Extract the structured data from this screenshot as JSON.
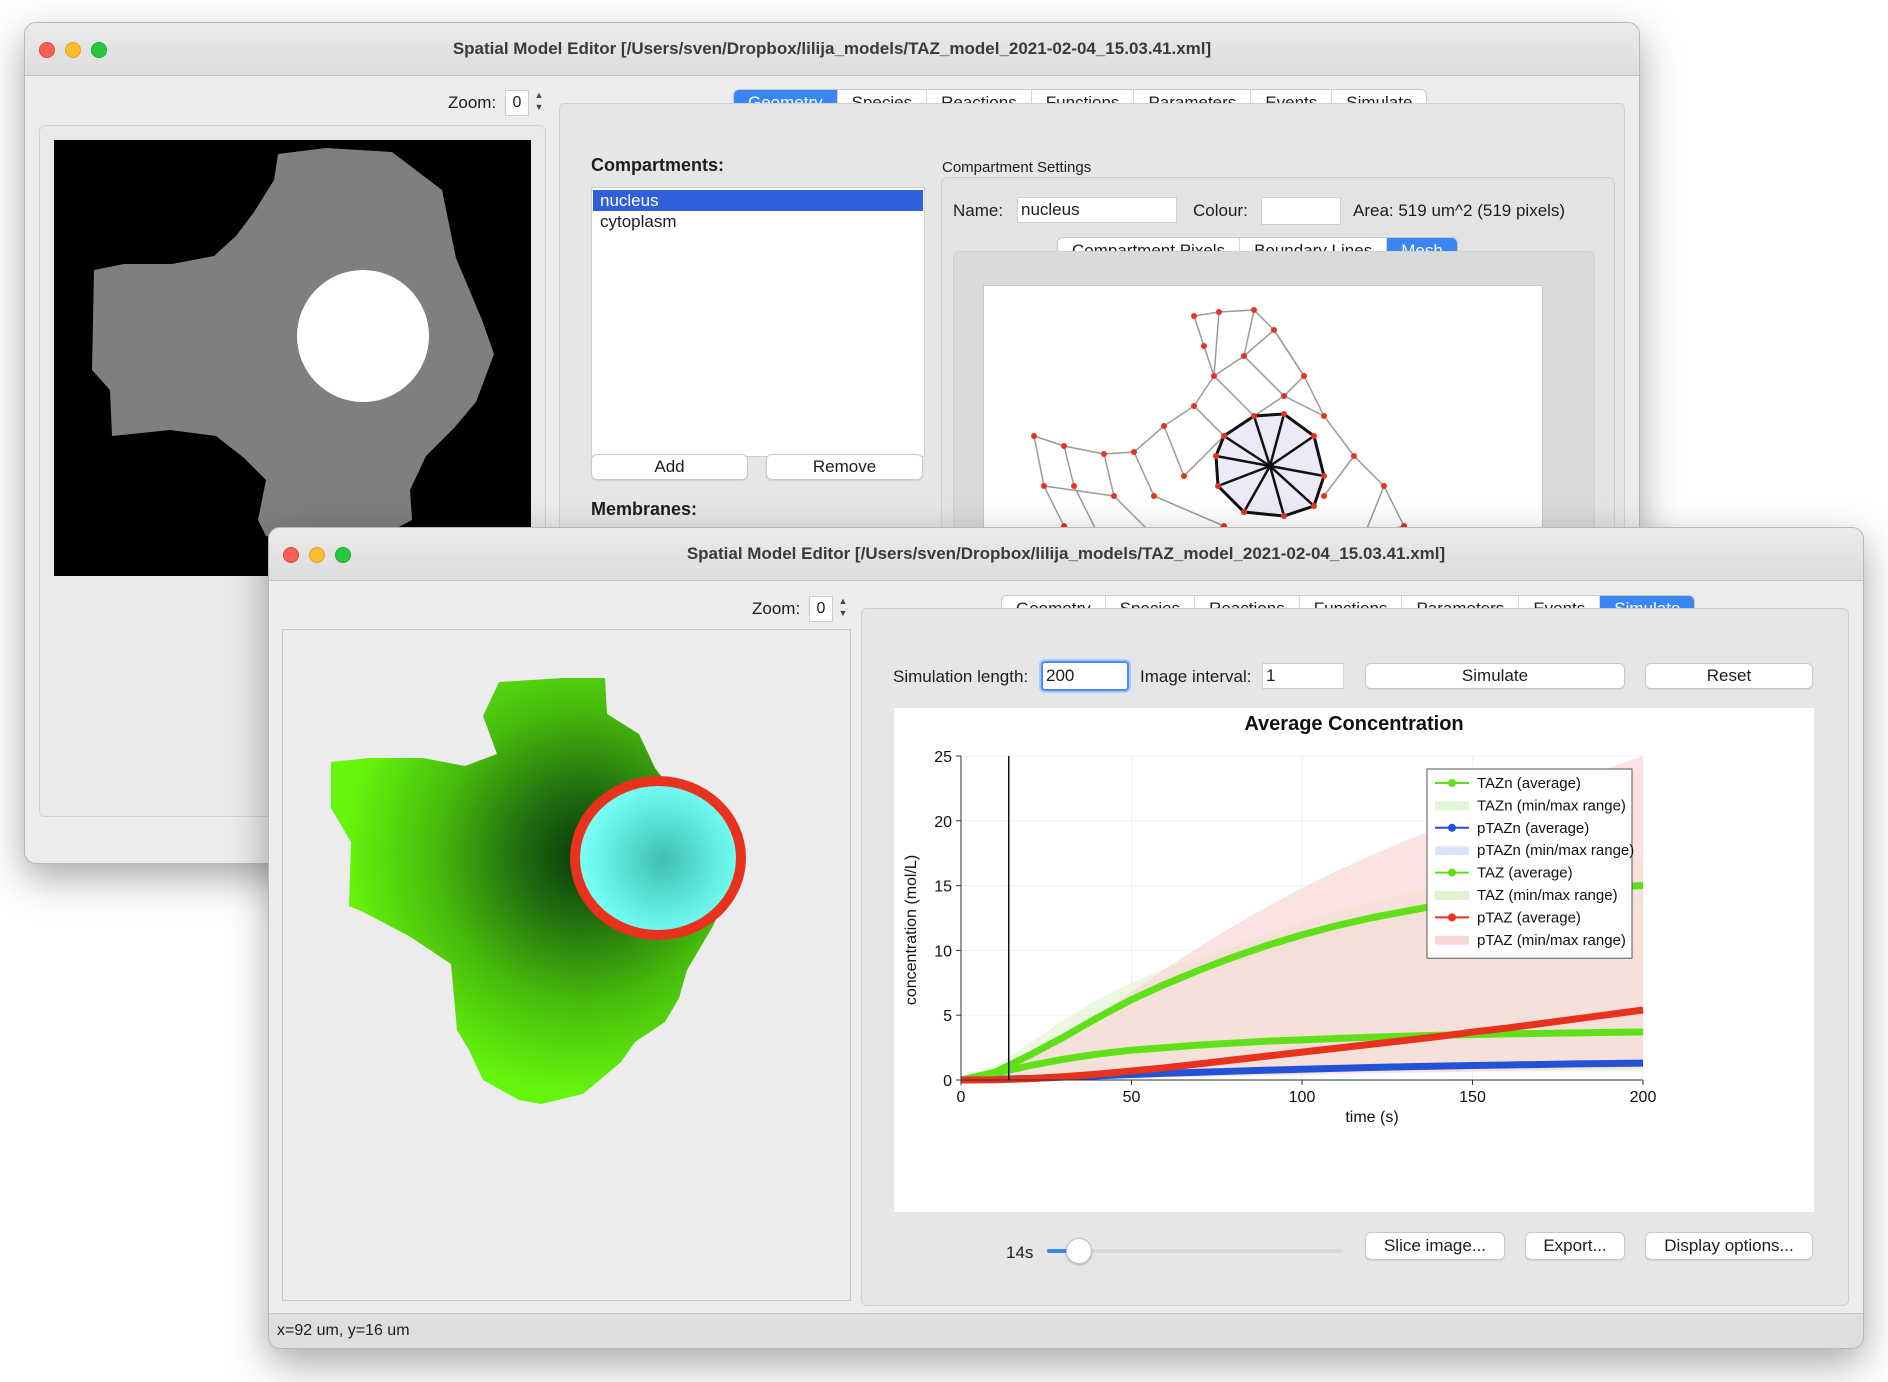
{
  "back_window": {
    "title": "Spatial Model Editor [/Users/sven/Dropbox/lilija_models/TAZ_model_2021-02-04_15.03.41.xml]",
    "zoom_label": "Zoom:",
    "zoom_value": "0",
    "tabs": [
      "Geometry",
      "Species",
      "Reactions",
      "Functions",
      "Parameters",
      "Events",
      "Simulate"
    ],
    "active_tab": "Geometry",
    "compartments_label": "Compartments:",
    "compartments": [
      "nucleus",
      "cytoplasm"
    ],
    "selected_compartment": "nucleus",
    "add_button": "Add",
    "remove_button": "Remove",
    "membranes_label": "Membranes:",
    "settings_title": "Compartment Settings",
    "name_label": "Name:",
    "name_value": "nucleus",
    "colour_label": "Colour:",
    "area_text": "Area: 519 um^2 (519 pixels)",
    "subtabs": [
      "Compartment Pixels",
      "Boundary Lines",
      "Mesh"
    ],
    "active_subtab": "Mesh"
  },
  "front_window": {
    "title": "Spatial Model Editor [/Users/sven/Dropbox/lilija_models/TAZ_model_2021-02-04_15.03.41.xml]",
    "zoom_label": "Zoom:",
    "zoom_value": "0",
    "tabs": [
      "Geometry",
      "Species",
      "Reactions",
      "Functions",
      "Parameters",
      "Events",
      "Simulate"
    ],
    "active_tab": "Simulate",
    "sim_length_label": "Simulation length:",
    "sim_length_value": "200",
    "image_interval_label": "Image interval:",
    "image_interval_value": "1",
    "simulate_button": "Simulate",
    "reset_button": "Reset",
    "time_label": "14s",
    "time_slider_value": 14,
    "slice_button": "Slice image...",
    "export_button": "Export...",
    "display_button": "Display options...",
    "status": "x=92 um, y=16 um"
  },
  "chart_data": {
    "type": "line",
    "title": "Average Concentration",
    "xlabel": "time (s)",
    "ylabel": "concentration (mol/L)",
    "xlim": [
      0,
      200
    ],
    "ylim": [
      0,
      25
    ],
    "xticks": [
      0,
      50,
      100,
      150,
      200
    ],
    "yticks": [
      0,
      5,
      10,
      15,
      20,
      25
    ],
    "current_time": 14,
    "legend_position": "top-right",
    "x": [
      0,
      10,
      20,
      30,
      40,
      50,
      60,
      70,
      80,
      90,
      100,
      110,
      120,
      130,
      140,
      150,
      160,
      170,
      180,
      190,
      200
    ],
    "series": [
      {
        "name": "TAZn (average)",
        "color": "#5fe018",
        "values": [
          0,
          0.6,
          1.9,
          3.3,
          4.8,
          6.2,
          7.4,
          8.5,
          9.5,
          10.4,
          11.2,
          11.9,
          12.5,
          13.0,
          13.5,
          13.9,
          14.2,
          14.5,
          14.7,
          14.9,
          15.0
        ]
      },
      {
        "name": "TAZn (min/max range)",
        "color": "#dff7d2",
        "band": true,
        "low": [
          0,
          0.6,
          1.8,
          3.2,
          4.6,
          5.9,
          7.0,
          8.0,
          8.9,
          9.7,
          10.4,
          11.0,
          11.5,
          12.0,
          12.4,
          12.7,
          13.0,
          13.2,
          13.4,
          13.5,
          13.6
        ],
        "high": [
          0,
          0.7,
          2.1,
          3.6,
          5.2,
          6.7,
          8.0,
          9.2,
          10.3,
          11.3,
          12.2,
          13.0,
          13.7,
          14.3,
          14.9,
          15.4,
          15.8,
          16.2,
          16.5,
          16.8,
          17.0
        ]
      },
      {
        "name": "pTAZn (average)",
        "color": "#2352d8",
        "values": [
          0,
          0.05,
          0.12,
          0.22,
          0.32,
          0.42,
          0.52,
          0.6,
          0.68,
          0.76,
          0.83,
          0.9,
          0.96,
          1.02,
          1.07,
          1.12,
          1.16,
          1.2,
          1.24,
          1.27,
          1.3
        ]
      },
      {
        "name": "pTAZn (min/max range)",
        "color": "#dbe4fa",
        "band": true,
        "low": [
          0,
          0.04,
          0.1,
          0.19,
          0.28,
          0.37,
          0.46,
          0.53,
          0.6,
          0.67,
          0.73,
          0.79,
          0.84,
          0.89,
          0.94,
          0.98,
          1.02,
          1.05,
          1.08,
          1.11,
          1.14
        ],
        "high": [
          0,
          0.06,
          0.14,
          0.25,
          0.36,
          0.47,
          0.58,
          0.67,
          0.76,
          0.85,
          0.93,
          1.01,
          1.08,
          1.15,
          1.2,
          1.26,
          1.31,
          1.35,
          1.4,
          1.43,
          1.46
        ]
      },
      {
        "name": "TAZ (average)",
        "color": "#5fe018",
        "values": [
          0,
          0.5,
          1.1,
          1.6,
          2.0,
          2.3,
          2.5,
          2.7,
          2.85,
          3.0,
          3.1,
          3.2,
          3.3,
          3.38,
          3.45,
          3.5,
          3.56,
          3.6,
          3.64,
          3.67,
          3.7
        ]
      },
      {
        "name": "TAZ (min/max range)",
        "color": "#e2f3d4",
        "band": true,
        "low": [
          0,
          0.1,
          0.3,
          0.45,
          0.55,
          0.6,
          0.62,
          0.64,
          0.65,
          0.66,
          0.66,
          0.67,
          0.67,
          0.67,
          0.67,
          0.67,
          0.67,
          0.67,
          0.67,
          0.67,
          0.67
        ],
        "high": [
          0,
          1.1,
          2.8,
          4.6,
          6.2,
          7.5,
          8.6,
          9.5,
          10.3,
          11.0,
          11.6,
          12.1,
          12.6,
          13.0,
          13.4,
          13.8,
          14.2,
          14.5,
          14.8,
          15.1,
          15.3
        ]
      },
      {
        "name": "pTAZ (average)",
        "color": "#e8321e",
        "values": [
          0,
          0.02,
          0.1,
          0.25,
          0.45,
          0.7,
          0.95,
          1.25,
          1.55,
          1.85,
          2.15,
          2.45,
          2.75,
          3.05,
          3.35,
          3.7,
          4.0,
          4.35,
          4.7,
          5.05,
          5.4
        ]
      },
      {
        "name": "pTAZ (min/max range)",
        "color": "#f9d7d7",
        "band": true,
        "low": [
          0,
          0.0,
          0.02,
          0.05,
          0.1,
          0.15,
          0.2,
          0.25,
          0.3,
          0.35,
          0.4,
          0.45,
          0.5,
          0.55,
          0.6,
          0.65,
          0.7,
          0.75,
          0.8,
          0.85,
          0.9
        ],
        "high": [
          0,
          0.5,
          1.6,
          3.2,
          5.0,
          6.8,
          8.6,
          10.3,
          11.9,
          13.4,
          14.8,
          16.1,
          17.3,
          18.4,
          19.5,
          20.5,
          21.5,
          22.4,
          23.3,
          24.1,
          25.0
        ]
      }
    ]
  }
}
